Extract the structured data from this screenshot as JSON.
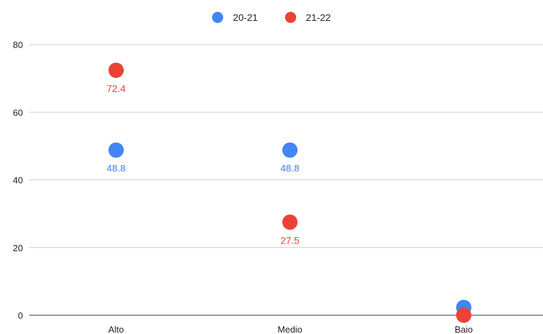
{
  "chart_data": {
    "type": "scatter",
    "categories": [
      "Alto",
      "Medio",
      "Baio"
    ],
    "series": [
      {
        "name": "20-21",
        "color": "#4285f4",
        "values": [
          48.8,
          48.8,
          2.3
        ],
        "labels": [
          "48.8",
          "48.8",
          ""
        ]
      },
      {
        "name": "21-22",
        "color": "#ea4335",
        "values": [
          72.4,
          27.5,
          0
        ],
        "labels": [
          "72.4",
          "27.5",
          ""
        ]
      }
    ],
    "ylim": [
      0,
      80
    ],
    "yticks": [
      0,
      20,
      40,
      60,
      80
    ],
    "grid": true,
    "legend_position": "top",
    "title": "",
    "xlabel": "",
    "ylabel": ""
  }
}
